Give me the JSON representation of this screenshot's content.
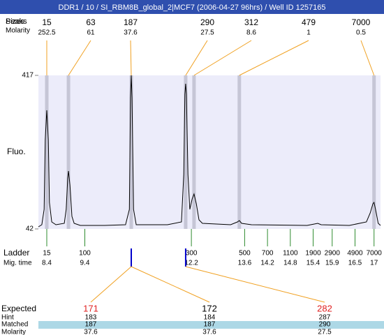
{
  "chart_data": {
    "type": "line",
    "title": "DDR1 / 10 / SI_RBM8B_global_2|MCF7 (2006-04-27 96hrs) / Well ID 1257165",
    "title_bar_color": "#2f4fae",
    "size_row_labels": [
      "Peaks",
      "Sizes"
    ],
    "molarity_label": "Molarity",
    "y_label": "Fluo.",
    "ylim": [
      42,
      417
    ],
    "yticks": [
      42,
      417
    ],
    "xlim": [
      8.18,
      17.17
    ],
    "plot_color": "#ececfa",
    "trace": {
      "color": "#000000",
      "x": [
        8.18,
        8.27,
        8.33,
        8.36,
        8.4,
        8.44,
        8.47,
        8.53,
        8.64,
        8.86,
        8.91,
        8.95,
        8.97,
        9.01,
        9.06,
        9.12,
        9.28,
        9.92,
        10.47,
        10.57,
        10.6,
        10.62,
        10.64,
        10.68,
        10.75,
        11.57,
        11.94,
        12.0,
        12.03,
        12.05,
        12.07,
        12.11,
        12.16,
        12.22,
        12.27,
        12.33,
        12.4,
        12.49,
        13.23,
        13.41,
        13.46,
        13.52,
        13.78,
        15.24,
        15.43,
        15.52,
        15.61,
        16.35,
        16.8,
        16.9,
        16.97,
        17.0,
        17.04,
        17.11,
        17.17
      ],
      "values": [
        47.1,
        52.2,
        89.7,
        260.2,
        331.8,
        260.2,
        106.8,
        59.0,
        52.2,
        55.6,
        89.7,
        166.4,
        183.5,
        149.4,
        72.7,
        55.6,
        50.5,
        50.5,
        52.2,
        89.7,
        362.4,
        417,
        362.4,
        89.7,
        52.2,
        52.2,
        59.0,
        175.0,
        371.0,
        396.5,
        371.0,
        175.0,
        89.7,
        115.3,
        127.2,
        103.4,
        64.2,
        55.6,
        52.2,
        59.0,
        62.5,
        55.6,
        52.2,
        50.5,
        53.9,
        55.6,
        52.2,
        50.5,
        59.0,
        81.2,
        103.4,
        106.8,
        89.7,
        55.6,
        50.5
      ]
    },
    "peaks": {
      "sizes": [
        15,
        63,
        187,
        290,
        312,
        479,
        7000
      ],
      "molarity": [
        252.5,
        61,
        37.6,
        27.5,
        8.6,
        1,
        0.5
      ],
      "x": [
        8.4,
        8.97,
        10.62,
        12.05,
        12.27,
        13.46,
        17.0
      ],
      "band_color": "#c6c6d6",
      "leader_color": "#f0a020"
    },
    "ladder": {
      "label": "Ladder",
      "time_label": "Mig. time",
      "sizes": [
        15,
        100,
        300,
        500,
        700,
        1100,
        1900,
        2900,
        4900,
        7000
      ],
      "times": [
        8.4,
        9.4,
        12.2,
        13.6,
        14.2,
        14.8,
        15.4,
        15.9,
        16.5,
        17
      ],
      "color": "#2e8b2e"
    },
    "expected": {
      "row_labels": [
        "Expected",
        "Hint",
        "Matched",
        "Molarity"
      ],
      "marker_color": "#0000cc",
      "link_color": "#f0a020",
      "matched_band_color": "#add8e6",
      "columns": [
        {
          "expected": 171,
          "hint": 183,
          "matched": 187,
          "molarity": 37.6,
          "color": "#e02020",
          "marker_time": 10.62
        },
        {
          "expected": 172,
          "hint": 184,
          "matched": 187,
          "molarity": 37.6,
          "color": "#000000",
          "marker_time": 10.62
        },
        {
          "expected": 282,
          "hint": 287,
          "matched": 290,
          "molarity": 27.5,
          "color": "#e02020",
          "marker_time": 12.05
        }
      ]
    }
  }
}
